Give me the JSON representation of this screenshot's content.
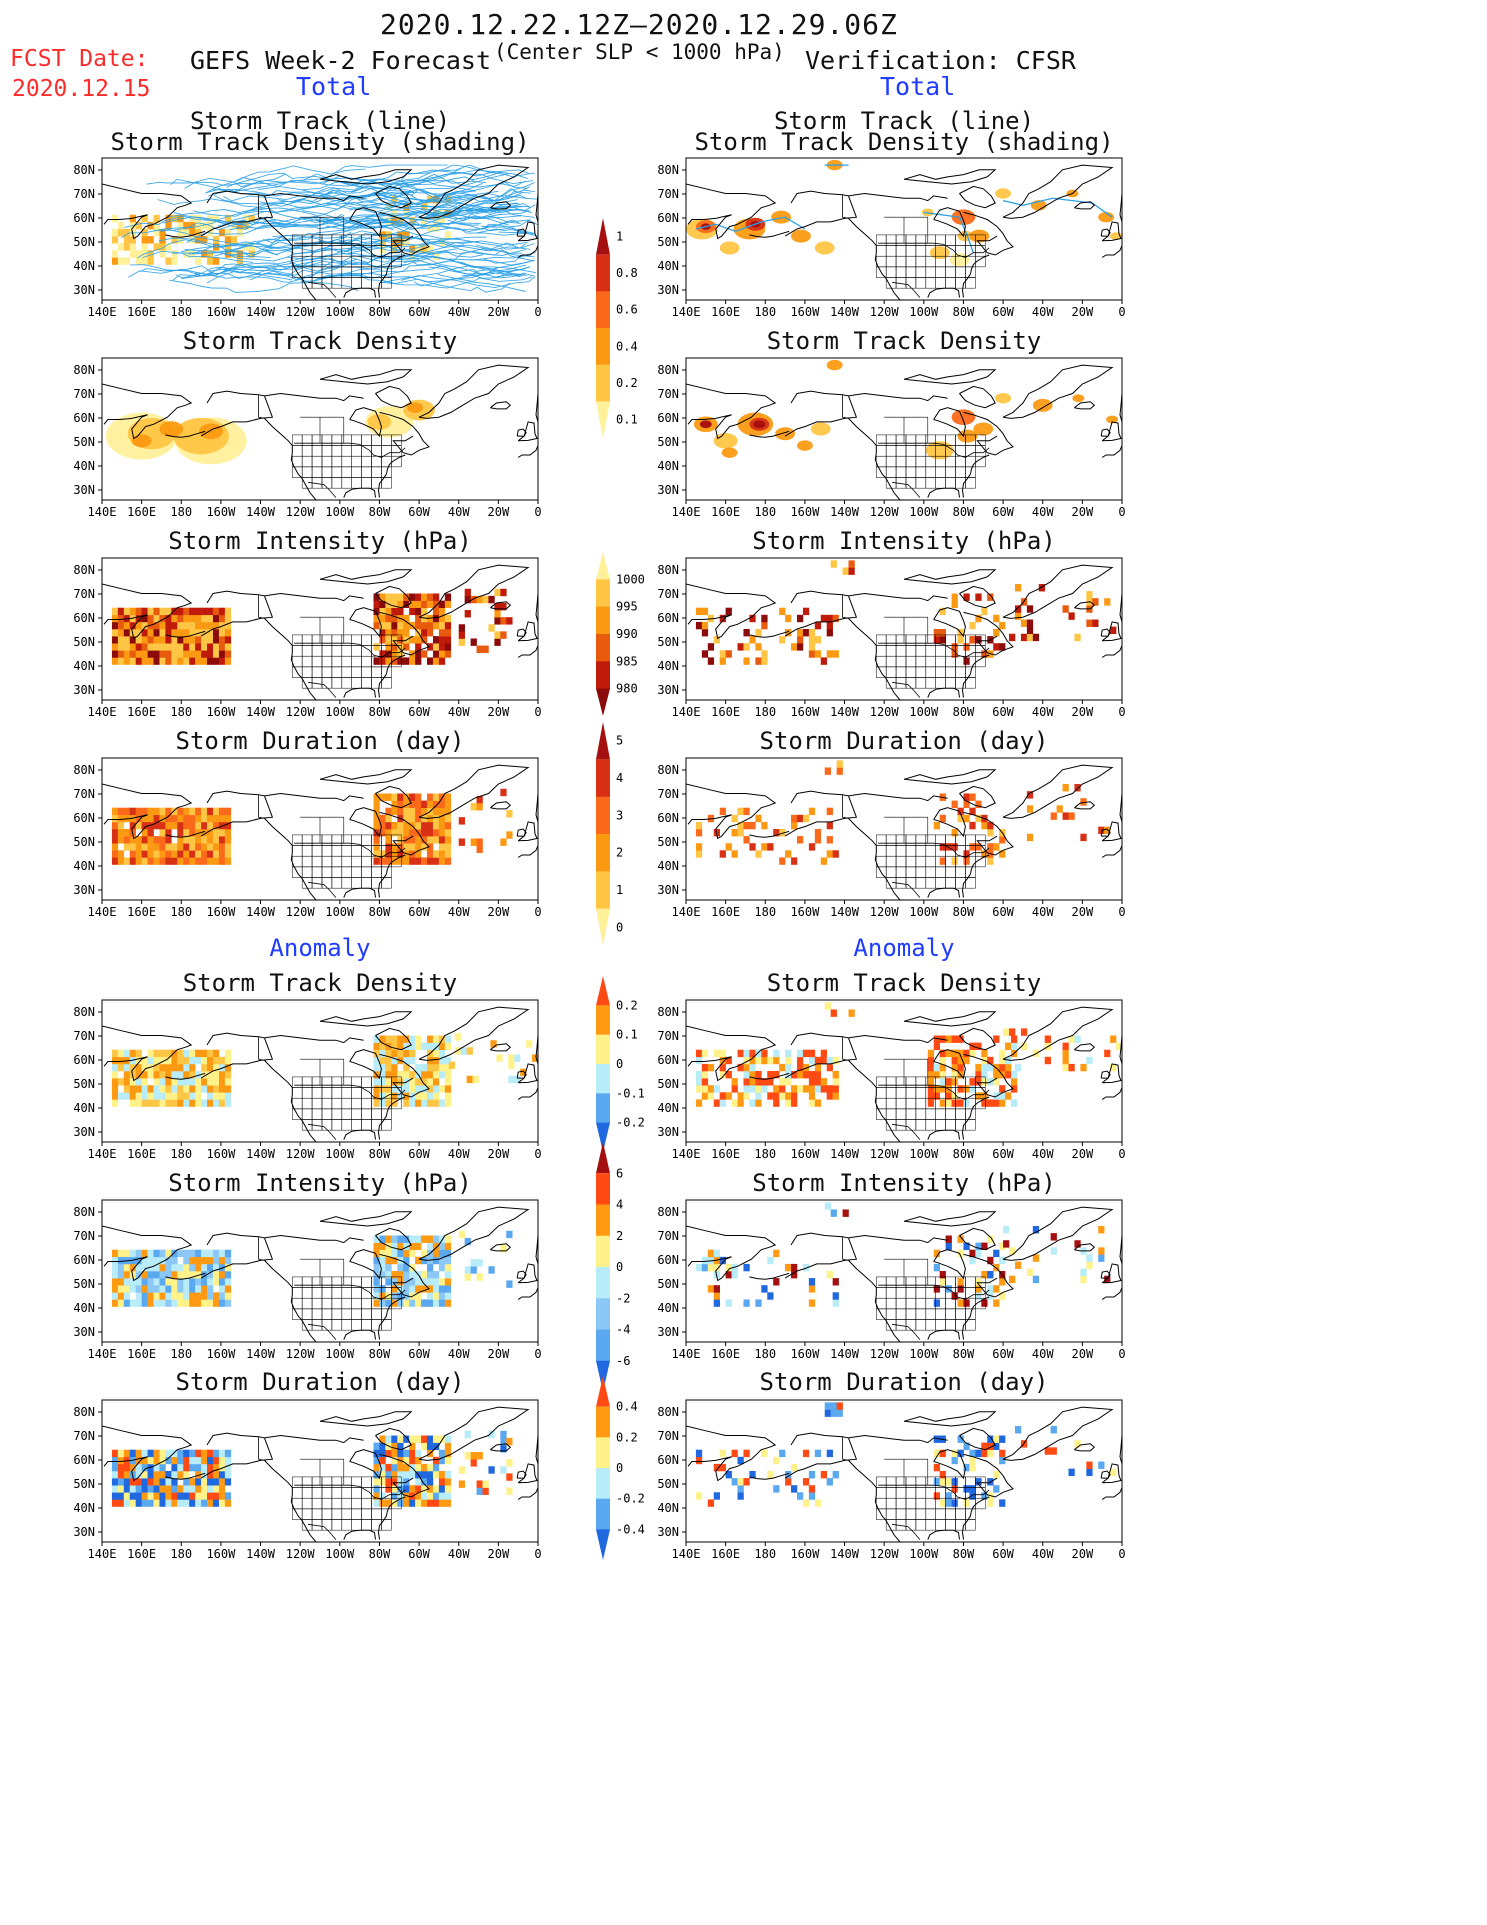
{
  "header": {
    "title": "2020.12.22.12Z–2020.12.29.06Z",
    "fcst_label": "FCST Date:",
    "fcst_date": "2020.12.15",
    "left_model": "GEFS Week-2 Forecast",
    "criterion": "(Center SLP < 1000 hPa)",
    "right_model": "Verification: CFSR"
  },
  "sections": {
    "total": "Total",
    "anomaly": "Anomaly"
  },
  "panel_titles": {
    "track_line": "Storm Track (line)",
    "track_shading": "Storm Track Density (shading)",
    "density": "Storm Track Density",
    "intensity": "Storm Intensity (hPa)",
    "duration": "Storm Duration (day)"
  },
  "axes": {
    "lon_ticks": [
      "140E",
      "160E",
      "180",
      "160W",
      "140W",
      "120W",
      "100W",
      "80W",
      "60W",
      "40W",
      "20W",
      "0"
    ],
    "lat_ticks": [
      "80N",
      "70N",
      "60N",
      "50N",
      "40N",
      "30N"
    ]
  },
  "colorbars": [
    {
      "name": "density-total",
      "labels": [
        "1",
        "0.8",
        "0.6",
        "0.4",
        "0.2",
        "0.1"
      ],
      "colors": [
        "#a50f0f",
        "#d73015",
        "#fb6a1a",
        "#fb9a12",
        "#ffc545",
        "#fff09a"
      ]
    },
    {
      "name": "intensity-total",
      "labels": [
        "1000",
        "995",
        "990",
        "985",
        "980"
      ],
      "colors": [
        "#fff09a",
        "#ffc545",
        "#fb9a12",
        "#e85a0d",
        "#c01a0a",
        "#8b0a0a"
      ]
    },
    {
      "name": "duration-total",
      "labels": [
        "5",
        "4",
        "3",
        "2",
        "1",
        "0"
      ],
      "colors": [
        "#a50f0f",
        "#d73015",
        "#fb6a1a",
        "#fb9a12",
        "#ffc545",
        "#fff09a"
      ]
    },
    {
      "name": "density-anomaly",
      "labels": [
        "0.2",
        "0.1",
        "0",
        "-0.1",
        "-0.2"
      ],
      "colors": [
        "#ff4a14",
        "#ff9a12",
        "#fff28a",
        "#b8ecf8",
        "#5aa8f0",
        "#1f68e0"
      ]
    },
    {
      "name": "intensity-anomaly",
      "labels": [
        "6",
        "4",
        "2",
        "0",
        "-2",
        "-4",
        "-6"
      ],
      "colors": [
        "#a50f0f",
        "#ff4a14",
        "#ff9a12",
        "#fff28a",
        "#b8ecf8",
        "#8cc8f6",
        "#5aa8f0",
        "#1f68e0"
      ]
    },
    {
      "name": "duration-anomaly",
      "labels": [
        "0.4",
        "0.2",
        "0",
        "-0.2",
        "-0.4"
      ],
      "colors": [
        "#ff4a14",
        "#ff9a12",
        "#fff28a",
        "#b8ecf8",
        "#5aa8f0",
        "#1f68e0"
      ]
    }
  ]
}
